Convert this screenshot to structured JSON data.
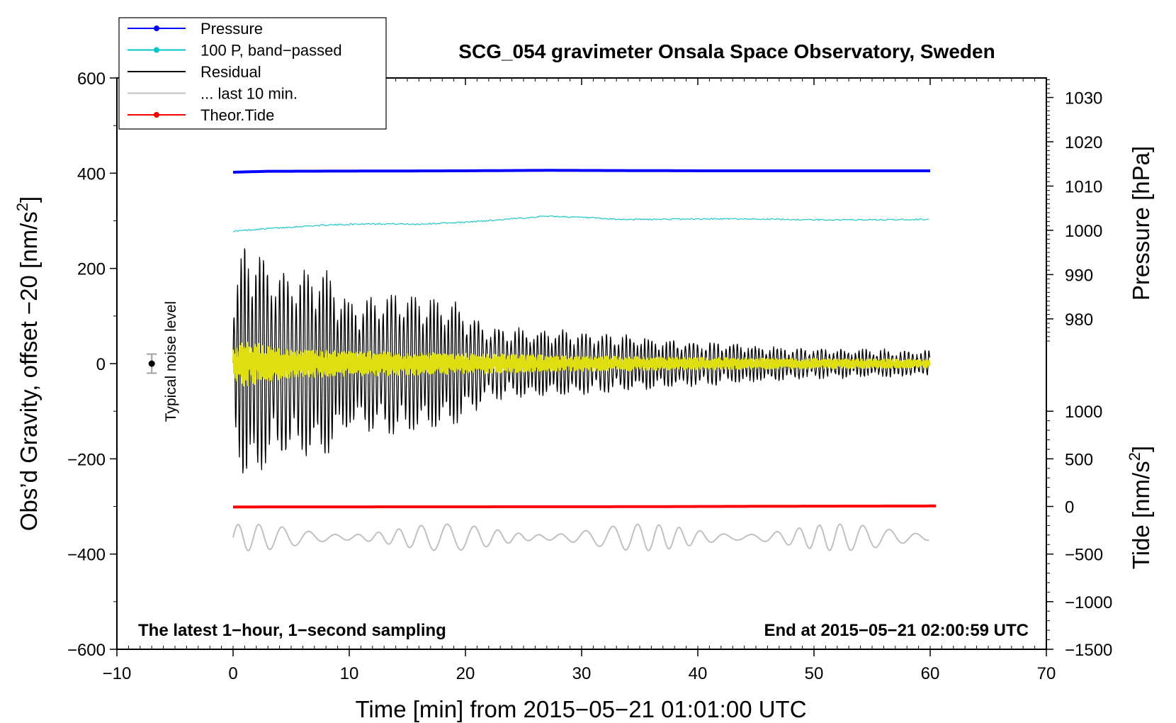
{
  "chart_data": {
    "type": "line",
    "title": "SCG_054 gravimeter Onsala Space Observatory, Sweden",
    "xlabel": "Time [min] from 2015−05−21 01:01:00 UTC",
    "ylabel_left": "Obs’d Gravity, offset −20 [nm/s",
    "ylabel_left_sup": "2",
    "ylabel_left_end": "]",
    "ylabel_right_top": "Pressure [hPa]",
    "ylabel_right_bottom": "Tide [nm/s",
    "ylabel_right_bottom_sup": "2",
    "ylabel_right_bottom_end": "]",
    "xlim": [
      -10,
      70
    ],
    "ylim": [
      -600,
      600
    ],
    "xticks": [
      -10,
      0,
      10,
      20,
      30,
      40,
      50,
      60,
      70
    ],
    "xtick_labels": [
      "−10",
      "0",
      "10",
      "20",
      "30",
      "40",
      "50",
      "60",
      "70"
    ],
    "yticks": [
      600,
      400,
      200,
      0,
      -200,
      -400,
      -600
    ],
    "ytick_labels": [
      "600",
      "400",
      "200",
      "0",
      "−200",
      "−400",
      "−600"
    ],
    "pressure_axis": {
      "ticks": [
        1030,
        1020,
        1010,
        1000,
        990,
        980
      ],
      "tick_labels": [
        "1030",
        "1020",
        "1010",
        "1000",
        "990",
        "980"
      ],
      "gravity_at_1000": 280,
      "gravity_per_hpa": 9.3
    },
    "tide_axis": {
      "ticks": [
        1000,
        500,
        0,
        -500,
        -1000,
        -1500
      ],
      "tick_labels": [
        "1000",
        "500",
        "0",
        "−500",
        "−1000",
        "−1500"
      ],
      "gravity_at_0": -300,
      "gravity_per_unit": 0.2
    },
    "legend": [
      {
        "label": "Pressure",
        "color": "#0000ff",
        "marker": true
      },
      {
        "label": "100 P, band−passed",
        "color": "#00c8c8",
        "marker": true
      },
      {
        "label": "Residual",
        "color": "#000000",
        "marker": false
      },
      {
        "label": "... last 10 min.",
        "color": "#c0c0c0",
        "marker": false
      },
      {
        "label": "Theor.Tide",
        "color": "#ff0000",
        "marker": true
      }
    ],
    "series": [
      {
        "name": "Pressure",
        "color": "#0000ff",
        "x": [
          0,
          3,
          20,
          27,
          40,
          60
        ],
        "y": [
          402,
          404,
          405,
          406,
          405,
          405
        ]
      },
      {
        "name": "100 P, band−passed",
        "color": "#20c8c8",
        "x": [
          0,
          2,
          5,
          8,
          12,
          16,
          20,
          24,
          27,
          30,
          33,
          36,
          40,
          45,
          50,
          55,
          60
        ],
        "y": [
          278,
          282,
          287,
          291,
          294,
          293,
          297,
          304,
          310,
          307,
          303,
          303,
          304,
          304,
          302,
          302,
          303
        ]
      },
      {
        "name": "Residual",
        "color": "#000000",
        "x": [
          0,
          1,
          4,
          8,
          10,
          14,
          19,
          22,
          30,
          40,
          50,
          60
        ],
        "envelope": [
          120,
          265,
          190,
          200,
          130,
          150,
          130,
          75,
          65,
          45,
          30,
          25
        ],
        "period_min": 0.33
      },
      {
        "name": "Residual (high-pass)",
        "color": "#dede10",
        "x": [
          0,
          1,
          5,
          10,
          20,
          30,
          40,
          50,
          60
        ],
        "envelope": [
          30,
          45,
          28,
          25,
          20,
          15,
          12,
          10,
          8
        ],
        "period_min": 0.12
      },
      {
        "name": "... last 10 min.",
        "color": "#c0c0c0",
        "x_start": 0,
        "x_end": 60,
        "offset": -365,
        "amplitude": 28,
        "period_min": 2.0
      },
      {
        "name": "Theor.Tide",
        "color": "#ff0000",
        "x": [
          0,
          34,
          48,
          60.5
        ],
        "y": [
          -301,
          -300.5,
          -299.5,
          -299
        ]
      }
    ],
    "noise_level": {
      "label": "Typical noise level",
      "x": -7,
      "y": 0,
      "err": 20
    }
  },
  "footnote_left": "The latest 1−hour, 1−second sampling",
  "footnote_right": "End at 2015−05−21 02:00:59 UTC"
}
